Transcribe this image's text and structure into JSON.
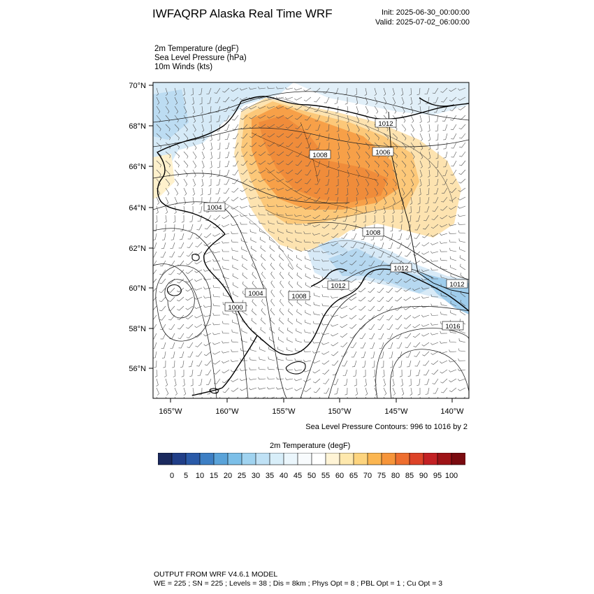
{
  "header": {
    "title": "IWFAQRP Alaska Real Time WRF",
    "init": "Init: 2025-06-30_00:00:00",
    "valid": "Valid: 2025-07-02_06:00:00"
  },
  "fields": [
    "2m Temperature   (degF)",
    "Sea Level Pressure   (hPa)",
    "10m Winds   (kts)"
  ],
  "axes": {
    "lat_labels": [
      "70°N",
      "68°N",
      "66°N",
      "64°N",
      "62°N",
      "60°N",
      "58°N",
      "56°N"
    ],
    "lon_labels": [
      "165°W",
      "160°W",
      "155°W",
      "150°W",
      "145°W",
      "140°W"
    ]
  },
  "contour_labels": [
    "1012",
    "1008",
    "1006",
    "1004",
    "1008",
    "1012",
    "1012",
    "1004",
    "1008",
    "1012",
    "1000",
    "1016"
  ],
  "slp_note": "Sea Level Pressure Contours: 996 to 1016 by 2",
  "colorbar": {
    "title": "2m Temperature  (degF)",
    "labels": [
      "0",
      "5",
      "10",
      "15",
      "20",
      "25",
      "30",
      "35",
      "40",
      "45",
      "50",
      "55",
      "60",
      "65",
      "70",
      "75",
      "80",
      "85",
      "90",
      "95",
      "100"
    ],
    "colors": [
      "#1b2a5e",
      "#213f88",
      "#2a5aa8",
      "#3d7fc4",
      "#5aa3d9",
      "#7cbfe8",
      "#a0d3f0",
      "#bfe1f5",
      "#d8eef9",
      "#ebf6fc",
      "#f8fbfd",
      "#ffffff",
      "#fff4d6",
      "#fee8ad",
      "#fdd47e",
      "#fbb651",
      "#f6953a",
      "#ee6e2f",
      "#dd4328",
      "#c32124",
      "#9e1317",
      "#7a0b10"
    ]
  },
  "footer": {
    "line1": "OUTPUT FROM WRF V4.6.1 MODEL",
    "line2": "WE = 225 ; SN = 225 ; Levels = 38 ; Dis = 8km ; Phys Opt = 8 ; PBL Opt = 1 ; Cu Opt = 3"
  }
}
